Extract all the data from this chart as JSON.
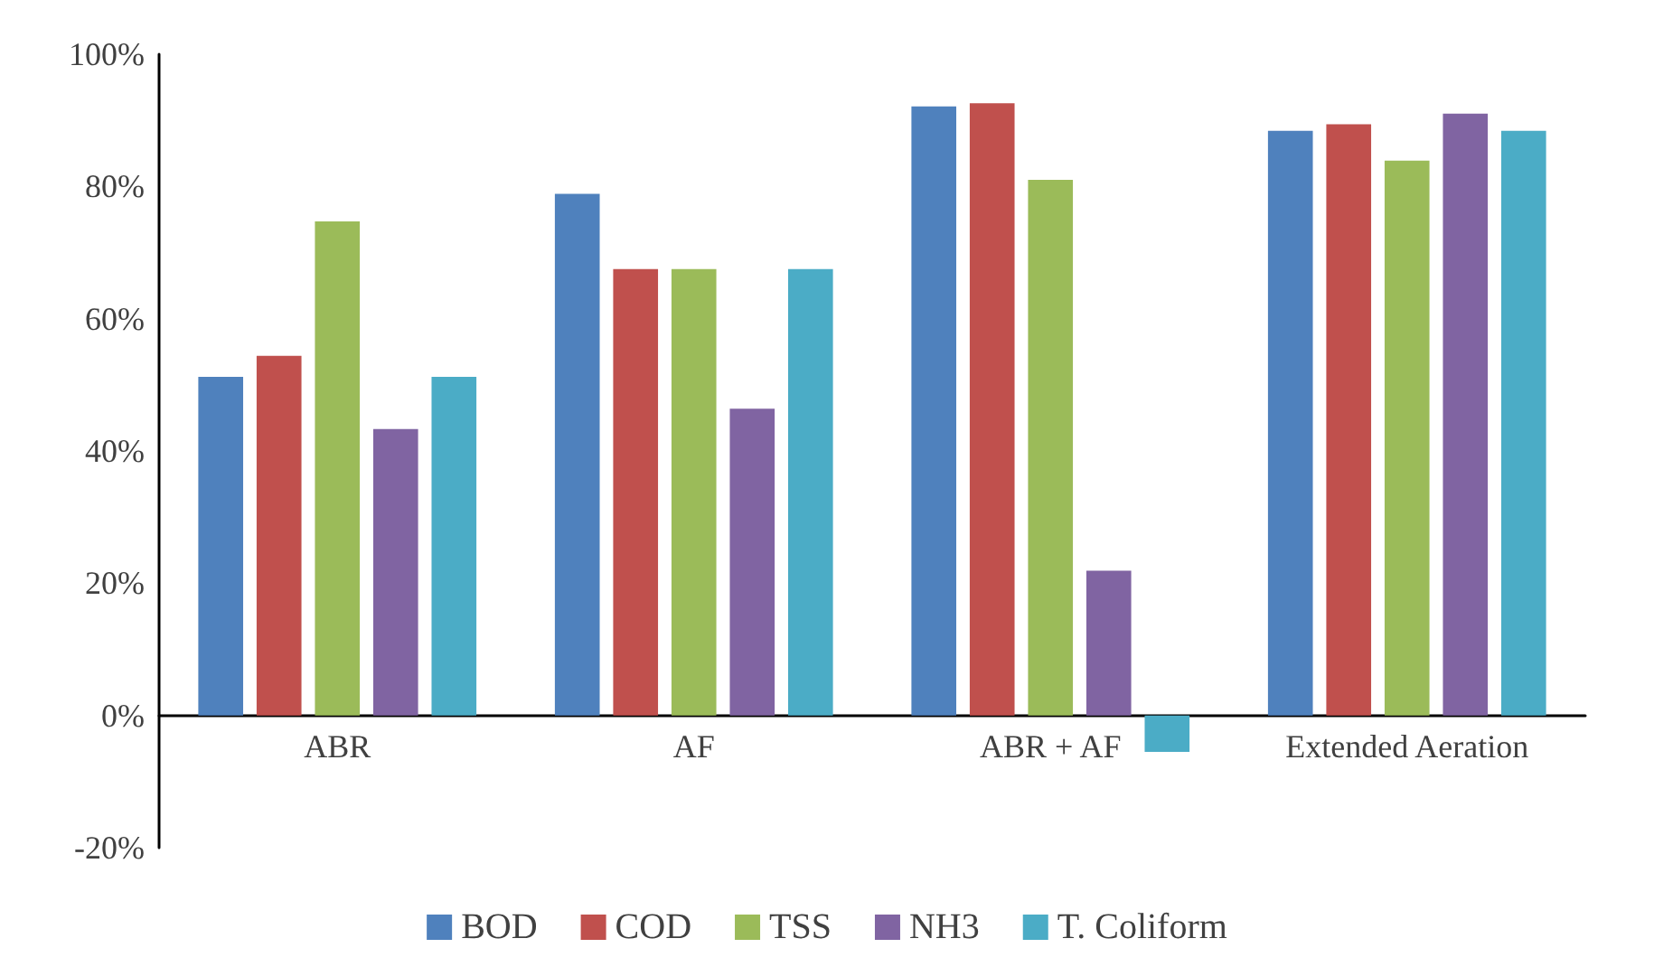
{
  "chart_data": {
    "type": "bar",
    "categories": [
      "ABR",
      "AF",
      "ABR + AF",
      "Extended Aeration"
    ],
    "series": [
      {
        "name": "BOD",
        "color": "#4f81bd",
        "values": [
          51.2,
          78.9,
          92.1,
          88.4
        ]
      },
      {
        "name": "COD",
        "color": "#c0504d",
        "values": [
          54.4,
          67.5,
          92.6,
          89.4
        ]
      },
      {
        "name": "TSS",
        "color": "#9bbb59",
        "values": [
          74.7,
          67.5,
          81.0,
          83.9
        ]
      },
      {
        "name": "NH3",
        "color": "#8064a2",
        "values": [
          43.3,
          46.4,
          21.9,
          91.0
        ]
      },
      {
        "name": "T. Coliform",
        "color": "#4bacc6",
        "values": [
          51.2,
          67.5,
          -5.5,
          88.4
        ]
      }
    ],
    "ylim": [
      -20,
      100
    ],
    "yticks": [
      {
        "value": -20,
        "label": "-20%"
      },
      {
        "value": 0,
        "label": "0%"
      },
      {
        "value": 20,
        "label": "20%"
      },
      {
        "value": 40,
        "label": "40%"
      },
      {
        "value": 60,
        "label": "60%"
      },
      {
        "value": 80,
        "label": "80%"
      },
      {
        "value": 100,
        "label": "100%"
      }
    ],
    "grid": false,
    "legend": "bottom"
  }
}
